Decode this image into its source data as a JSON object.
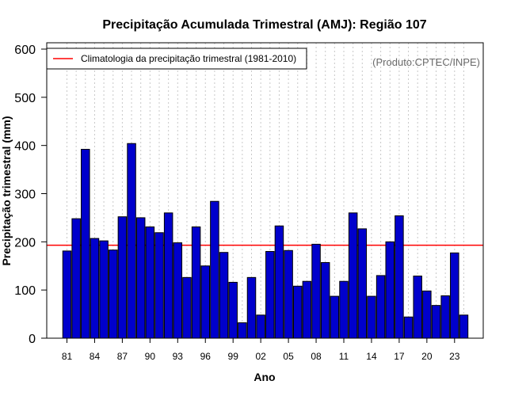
{
  "chart_data": {
    "type": "bar",
    "title": "Precipitação Acumulada Trimestral (AMJ): Região 107",
    "xlabel": "Ano",
    "ylabel": "Precipitação trimestral (mm)",
    "product_note": "(Produto:CPTEC/INPE)",
    "legend": {
      "label": "Climatologia da precipitação trimestral (1981-2010)",
      "placement": "top-left",
      "line_color": "#ff0000"
    },
    "ylim": [
      0,
      600
    ],
    "yticks": [
      "0",
      "100",
      "200",
      "300",
      "400",
      "500",
      "600"
    ],
    "xtick_labels": [
      "81",
      "84",
      "87",
      "90",
      "93",
      "96",
      "99",
      "02",
      "05",
      "08",
      "11",
      "14",
      "17",
      "20",
      "23"
    ],
    "categories": [
      "1981",
      "1982",
      "1983",
      "1984",
      "1985",
      "1986",
      "1987",
      "1988",
      "1989",
      "1990",
      "1991",
      "1992",
      "1993",
      "1994",
      "1995",
      "1996",
      "1997",
      "1998",
      "1999",
      "2000",
      "2001",
      "2002",
      "2003",
      "2004",
      "2005",
      "2006",
      "2007",
      "2008",
      "2009",
      "2010",
      "2011",
      "2012",
      "2013",
      "2014",
      "2015",
      "2016",
      "2017",
      "2018",
      "2019",
      "2020",
      "2021",
      "2022",
      "2023",
      "2024"
    ],
    "values": [
      181,
      248,
      392,
      207,
      202,
      183,
      252,
      404,
      250,
      231,
      219,
      260,
      198,
      126,
      231,
      150,
      284,
      178,
      116,
      32,
      126,
      48,
      180,
      233,
      182,
      108,
      118,
      195,
      157,
      87,
      118,
      260,
      227,
      87,
      130,
      200,
      254,
      44,
      129,
      98,
      68,
      88,
      177,
      48
    ],
    "climatology": 193,
    "bar_color": "#0000cc",
    "bar_edge_color": "#000000",
    "grid": "vertical-dotted"
  }
}
